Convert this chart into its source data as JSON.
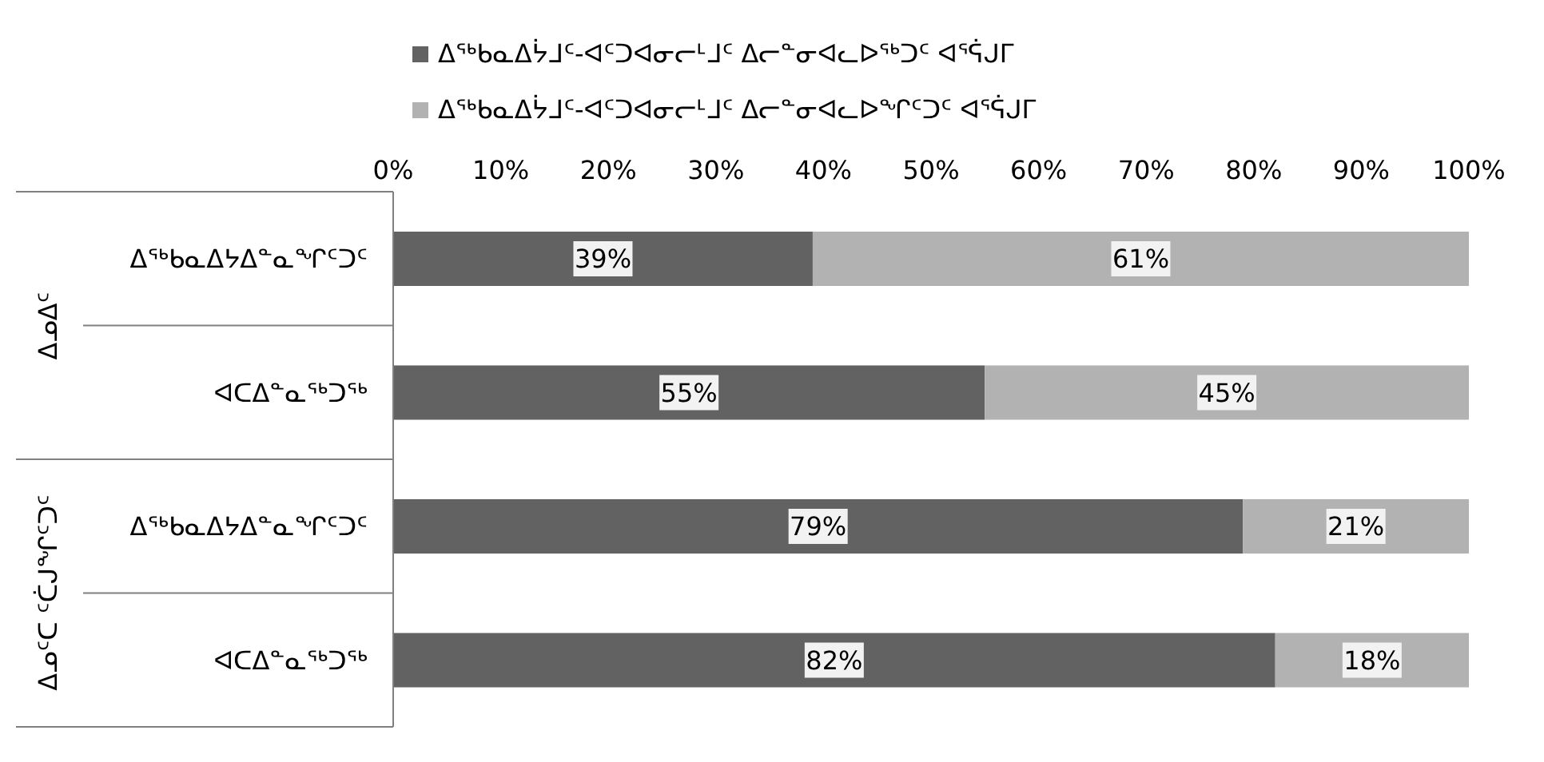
{
  "chart_data": {
    "type": "bar",
    "orientation": "horizontal",
    "stacked": true,
    "categories": [
      "ᐃᖅᑲᓇᐃᔭᐃᓐᓇᖏᑦᑐᑦ",
      "ᐊᑕᐃᓐᓇᖅᑐᖅ",
      "ᐃᖅᑲᓇᐃᔭᐃᓐᓇᖏᑦᑐᑦ",
      "ᐊᑕᐃᓐᓇᖅᑐᖅ"
    ],
    "series": [
      {
        "name": "ᐃᖅᑲᓇᐃᔮᒧᑦ-ᐊᑦᑐᐊᓂᓕᒻᒧᑦ ᐃᓕᓐᓂᐊᓚᐅᖅᑐᑦ ᐊᕐᕌᒍᒥ",
        "color": "#626262",
        "values": [
          39,
          55,
          79,
          82
        ],
        "value_labels": [
          "39%",
          "55%",
          "79%",
          "82%"
        ]
      },
      {
        "name": "ᐃᖅᑲᓇᐃᔮᒧᑦ-ᐊᑦᑐᐊᓂᓕᒻᒧᑦ ᐃᓕᓐᓂᐊᓚᐅᖏᑦᑐᑦ ᐊᕐᕌᒍᒥ",
        "color": "#b2b2b2",
        "values": [
          61,
          45,
          21,
          18
        ],
        "value_labels": [
          "61%",
          "45%",
          "21%",
          "18%"
        ]
      }
    ],
    "xlim": [
      0,
      100
    ],
    "xticks": [
      {
        "value": 0,
        "label": "0%"
      },
      {
        "value": 10,
        "label": "10%"
      },
      {
        "value": 20,
        "label": "20%"
      },
      {
        "value": 30,
        "label": "30%"
      },
      {
        "value": 40,
        "label": "40%"
      },
      {
        "value": 50,
        "label": "50%"
      },
      {
        "value": 60,
        "label": "60%"
      },
      {
        "value": 70,
        "label": "70%"
      },
      {
        "value": 80,
        "label": "80%"
      },
      {
        "value": 90,
        "label": "90%"
      },
      {
        "value": 100,
        "label": "100%"
      }
    ],
    "annotations": [
      "ᐃᓄᐃᑦ",
      "ᐃᓄᑦᑕ ᑦᑖᒍᖏᑦᑐᑦ"
    ],
    "legend": "top",
    "grid": false
  }
}
